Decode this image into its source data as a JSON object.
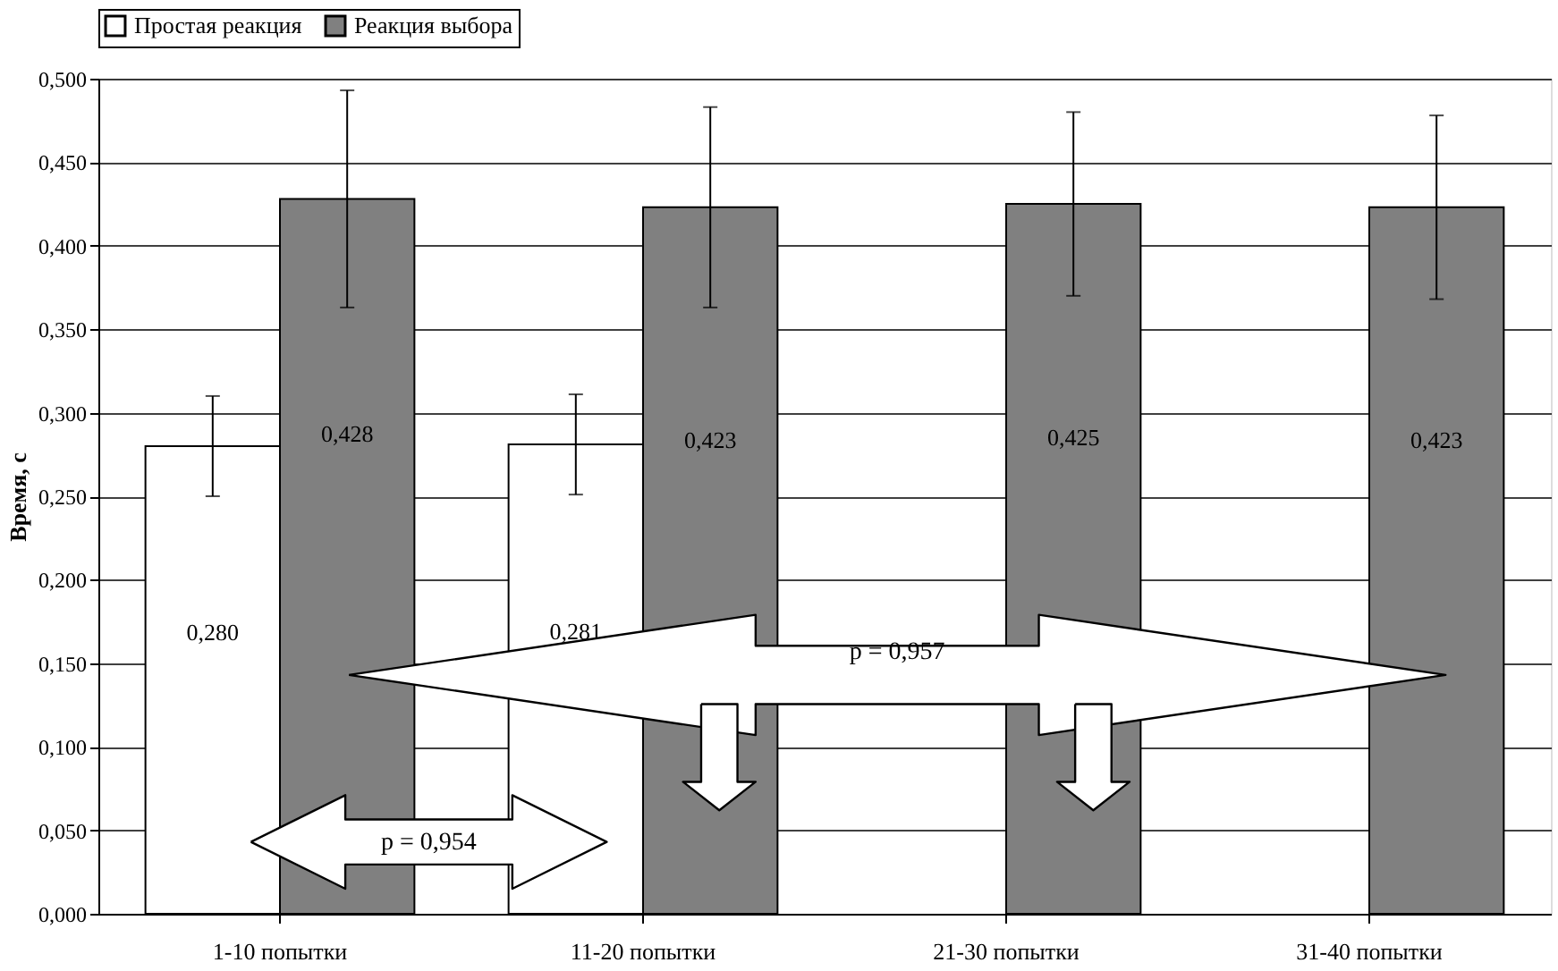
{
  "chart_data": {
    "type": "bar",
    "ylabel": "Время, с",
    "categories": [
      "1-10 попытки",
      "11-20 попытки",
      "21-30 попытки",
      "31-40 попытки"
    ],
    "series": [
      {
        "name": "Простая реакция",
        "color": "#ffffff",
        "values": [
          0.28,
          0.281,
          null,
          null
        ],
        "errors": [
          0.03,
          0.03,
          null,
          null
        ],
        "value_labels": [
          "0,280",
          "0,281",
          null,
          null
        ]
      },
      {
        "name": "Реакция выбора",
        "color": "#808080",
        "values": [
          0.428,
          0.423,
          0.425,
          0.423
        ],
        "errors": [
          0.065,
          0.06,
          0.055,
          0.055
        ],
        "value_labels": [
          "0,428",
          "0,423",
          "0,425",
          "0,423"
        ]
      }
    ],
    "ylim": [
      0,
      0.5
    ],
    "yticks": [
      {
        "value": 0,
        "label": "0,000"
      },
      {
        "value": 0.05,
        "label": "0,050"
      },
      {
        "value": 0.1,
        "label": "0,100"
      },
      {
        "value": 0.15,
        "label": "0,150"
      },
      {
        "value": 0.2,
        "label": "0,200"
      },
      {
        "value": 0.25,
        "label": "0,250"
      },
      {
        "value": 0.3,
        "label": "0,300"
      },
      {
        "value": 0.35,
        "label": "0,350"
      },
      {
        "value": 0.4,
        "label": "0,400"
      },
      {
        "value": 0.45,
        "label": "0,450"
      },
      {
        "value": 0.5,
        "label": "0,500"
      }
    ],
    "grid": "y",
    "legend": "top",
    "annotations": [
      "p = 0,954",
      "p = 0,957"
    ]
  }
}
